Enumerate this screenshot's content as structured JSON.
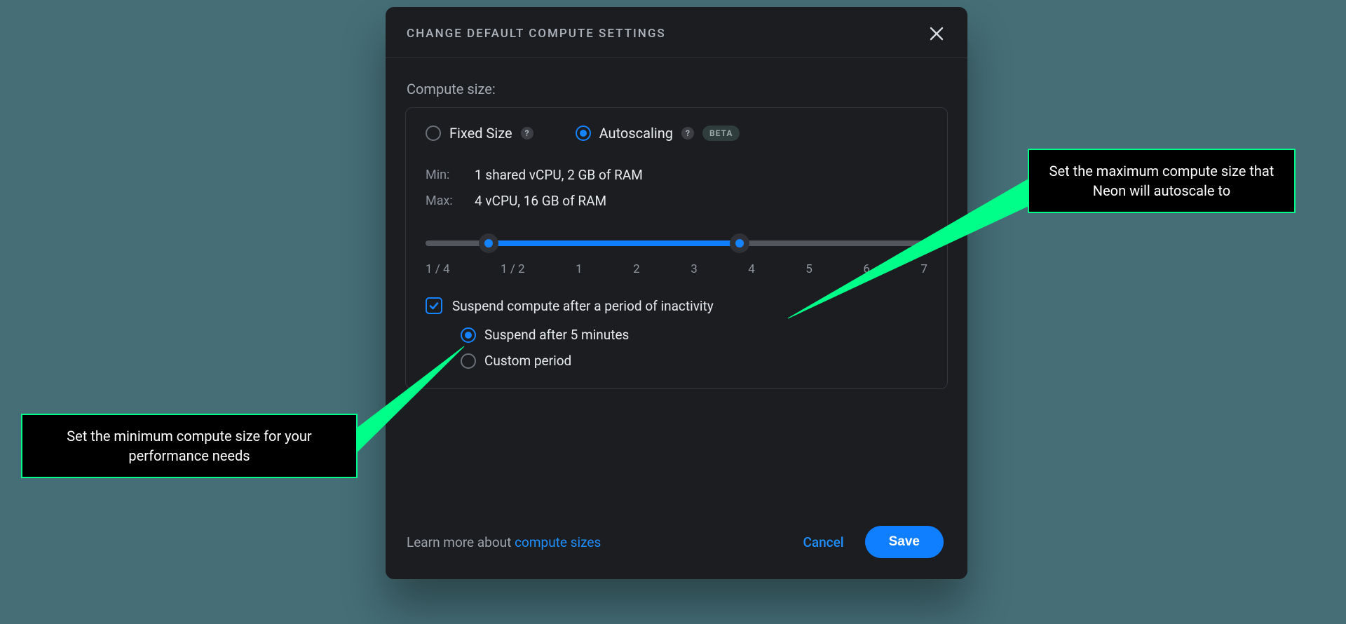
{
  "dialog": {
    "title": "CHANGE DEFAULT COMPUTE SETTINGS",
    "section_label": "Compute size:"
  },
  "size_mode": {
    "fixed_label": "Fixed Size",
    "autoscaling_label": "Autoscaling",
    "beta_label": "BETA",
    "selected": "autoscaling"
  },
  "min": {
    "key": "Min:",
    "value": "1 shared vCPU, 2 GB of RAM"
  },
  "max": {
    "key": "Max:",
    "value": "4 vCPU, 16 GB of RAM"
  },
  "slider": {
    "ticks": [
      "1 / 4",
      "1 / 2",
      "1",
      "2",
      "3",
      "4",
      "5",
      "6",
      "7"
    ],
    "min_index": 1,
    "max_index": 5,
    "track_color": "#54565d",
    "fill_color": "#0f7eff",
    "thumb_bg": "#303137",
    "thumb_dot": "#1583ff"
  },
  "suspend": {
    "checked": true,
    "checkbox_label": "Suspend compute after a period of inactivity",
    "option_after": "Suspend after 5 minutes",
    "option_custom": "Custom period",
    "selected": "after"
  },
  "footer": {
    "learn_prefix": "Learn more about ",
    "learn_link": "compute sizes",
    "cancel": "Cancel",
    "save": "Save"
  },
  "callouts": {
    "right": "Set the maximum compute size that Neon will autoscale to",
    "left": "Set the minimum compute size for your performance needs"
  },
  "colors": {
    "page_bg": "#456e77",
    "dialog_bg": "#1c1d21",
    "accent": "#1583ff",
    "callout_border": "#00ff88",
    "muted_text": "#9ea4ac"
  }
}
